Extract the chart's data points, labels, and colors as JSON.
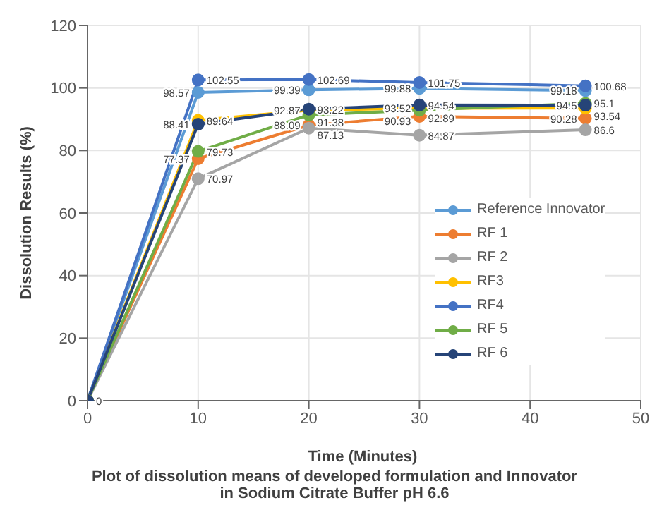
{
  "chart_data": {
    "type": "line",
    "title": "Plot of dissolution means of developed formulation and Innovator\nin Sodium Citrate Buffer pH 6.6",
    "xlabel": "Time (Minutes)",
    "ylabel": "Dissolution Results (%)",
    "x": [
      0,
      10,
      20,
      30,
      45
    ],
    "xlim": [
      0,
      50
    ],
    "xticks": [
      0,
      10,
      20,
      30,
      40,
      50
    ],
    "ylim": [
      0,
      120
    ],
    "yticks": [
      0,
      20,
      40,
      60,
      80,
      100,
      120
    ],
    "grid": true,
    "legend": "right",
    "marker": "circle",
    "series": [
      {
        "name": "Reference Innovator",
        "color": "#5b9bd5",
        "values": [
          0,
          98.57,
          99.39,
          99.88,
          99.18
        ],
        "value_labels": [
          "0",
          "98.57",
          "99.39",
          "99.88",
          "99.18"
        ]
      },
      {
        "name": "RF 1",
        "color": "#ed7d31",
        "values": [
          0,
          77.37,
          88.09,
          90.93,
          90.28
        ],
        "value_labels": [
          null,
          "77.37",
          "88.09",
          "90.93",
          "90.28"
        ]
      },
      {
        "name": "RF 2",
        "color": "#a5a5a5",
        "values": [
          0,
          70.97,
          87.13,
          84.87,
          86.6
        ],
        "value_labels": [
          null,
          "70.97",
          "87.13",
          "84.87",
          "86.6"
        ]
      },
      {
        "name": "RF3",
        "color": "#ffc000",
        "values": [
          0,
          89.64,
          92.87,
          93.52,
          93.54
        ],
        "value_labels": [
          null,
          "89.64",
          "92.87",
          "93.52",
          "93.54"
        ]
      },
      {
        "name": "RF4",
        "color": "#4472c4",
        "values": [
          0,
          102.55,
          102.69,
          101.75,
          100.68
        ],
        "value_labels": [
          null,
          "102.55",
          "102.69",
          "101.75",
          "100.68"
        ]
      },
      {
        "name": "RF 5",
        "color": "#70ad47",
        "values": [
          0,
          79.73,
          91.38,
          92.89,
          95.1
        ],
        "value_labels": [
          null,
          "79.73",
          "91.38",
          "92.89",
          "95.1"
        ]
      },
      {
        "name": "RF 6",
        "color": "#264478",
        "values": [
          0,
          88.41,
          93.22,
          94.54,
          94.5
        ],
        "value_labels": [
          null,
          "88.41",
          "93.22",
          "94.54",
          "94.5"
        ]
      }
    ]
  }
}
